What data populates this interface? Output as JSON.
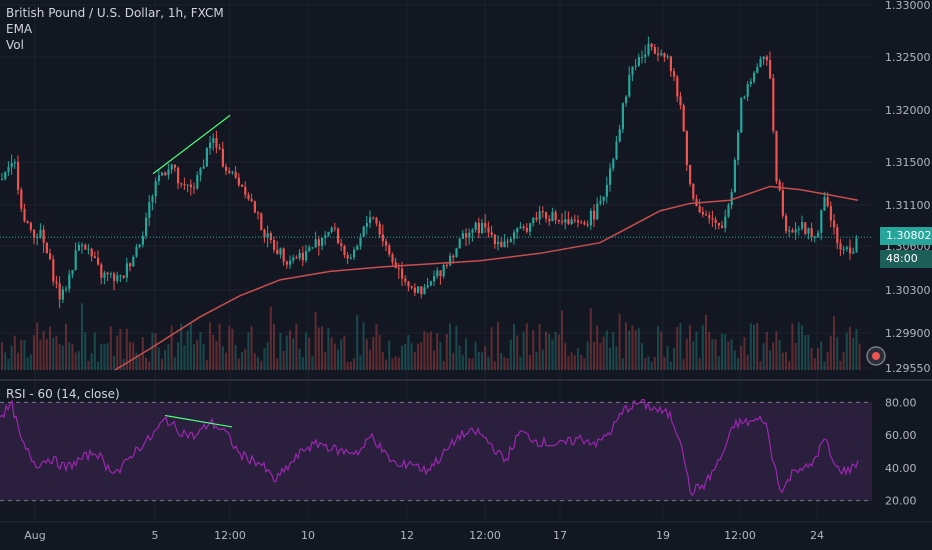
{
  "colors": {
    "background": "#131722",
    "grid": "#1e222d",
    "up": "#26a69a",
    "down": "#ef5350",
    "ema": "#c94e4e",
    "rsi_line": "#9c27b0",
    "rsi_band": "#2a1f3d",
    "last_price": "#26a69a",
    "text": "#b2b5be"
  },
  "legend": {
    "symbol": "British Pound / U.S. Dollar, 1h, FXCM",
    "ema": "EMA",
    "vol": "Vol",
    "rsi": "RSI - 60 (14, close)"
  },
  "last_price_tag": {
    "price": "1.30802",
    "countdown": "48:00"
  },
  "icons": {
    "settings": "clock-target-icon"
  },
  "chart_data": [
    {
      "type": "candlestick",
      "name": "British Pound / U.S. Dollar",
      "ylim": [
        1.2955,
        1.33
      ],
      "y_ticks": [
        "1.33000",
        "1.32500",
        "1.32000",
        "1.31500",
        "1.31100",
        "1.30600",
        "1.30300",
        "1.29900",
        "1.29550"
      ],
      "x_ticks": [
        "Aug",
        "5",
        "12:00",
        "10",
        "12",
        "12:00",
        "17",
        "19",
        "12:00",
        "24"
      ],
      "last_price": 1.30802,
      "path": [
        [
          0,
          1.3135
        ],
        [
          14,
          1.3148
        ],
        [
          24,
          1.309
        ],
        [
          40,
          1.3082
        ],
        [
          60,
          1.302
        ],
        [
          80,
          1.308
        ],
        [
          100,
          1.3045
        ],
        [
          120,
          1.304
        ],
        [
          140,
          1.308
        ],
        [
          155,
          1.3135
        ],
        [
          170,
          1.315
        ],
        [
          180,
          1.3125
        ],
        [
          195,
          1.313
        ],
        [
          210,
          1.3175
        ],
        [
          225,
          1.3145
        ],
        [
          245,
          1.3125
        ],
        [
          265,
          1.308
        ],
        [
          285,
          1.306
        ],
        [
          305,
          1.3065
        ],
        [
          330,
          1.309
        ],
        [
          350,
          1.3055
        ],
        [
          370,
          1.3105
        ],
        [
          390,
          1.306
        ],
        [
          405,
          1.304
        ],
        [
          420,
          1.3025
        ],
        [
          440,
          1.305
        ],
        [
          465,
          1.3085
        ],
        [
          480,
          1.309
        ],
        [
          500,
          1.3075
        ],
        [
          520,
          1.3085
        ],
        [
          540,
          1.3105
        ],
        [
          560,
          1.3095
        ],
        [
          580,
          1.309
        ],
        [
          600,
          1.311
        ],
        [
          615,
          1.317
        ],
        [
          630,
          1.324
        ],
        [
          650,
          1.326
        ],
        [
          665,
          1.3255
        ],
        [
          680,
          1.32
        ],
        [
          690,
          1.312
        ],
        [
          705,
          1.31
        ],
        [
          720,
          1.3085
        ],
        [
          730,
          1.312
        ],
        [
          740,
          1.321
        ],
        [
          755,
          1.324
        ],
        [
          768,
          1.325
        ],
        [
          775,
          1.314
        ],
        [
          785,
          1.309
        ],
        [
          800,
          1.309
        ],
        [
          815,
          1.308
        ],
        [
          825,
          1.312
        ],
        [
          835,
          1.3075
        ],
        [
          848,
          1.3065
        ],
        [
          858,
          1.308
        ]
      ],
      "ema": [
        [
          115,
          1.2955
        ],
        [
          150,
          1.2975
        ],
        [
          200,
          1.3005
        ],
        [
          240,
          1.3025
        ],
        [
          280,
          1.304
        ],
        [
          330,
          1.3048
        ],
        [
          380,
          1.3052
        ],
        [
          430,
          1.3055
        ],
        [
          480,
          1.3058
        ],
        [
          540,
          1.3065
        ],
        [
          600,
          1.3075
        ],
        [
          630,
          1.309
        ],
        [
          660,
          1.3105
        ],
        [
          690,
          1.3112
        ],
        [
          730,
          1.3115
        ],
        [
          770,
          1.3128
        ],
        [
          800,
          1.3125
        ],
        [
          830,
          1.312
        ],
        [
          858,
          1.3115
        ]
      ],
      "trendline": [
        [
          153,
          1.314
        ],
        [
          230,
          1.3195
        ]
      ]
    },
    {
      "type": "bar",
      "name": "Vol",
      "note": "volume bars overlaid at bottom of price pane"
    },
    {
      "type": "line",
      "name": "RSI",
      "ylim": [
        10,
        90
      ],
      "y_ticks": [
        "80.00",
        "60.00",
        "40.00",
        "20.00"
      ],
      "bands": [
        20,
        80
      ],
      "path": [
        [
          0,
          72
        ],
        [
          12,
          78
        ],
        [
          22,
          55
        ],
        [
          36,
          42
        ],
        [
          50,
          46
        ],
        [
          66,
          40
        ],
        [
          80,
          45
        ],
        [
          96,
          50
        ],
        [
          108,
          40
        ],
        [
          120,
          38
        ],
        [
          134,
          50
        ],
        [
          150,
          58
        ],
        [
          166,
          70
        ],
        [
          178,
          63
        ],
        [
          195,
          59
        ],
        [
          210,
          68
        ],
        [
          225,
          62
        ],
        [
          240,
          48
        ],
        [
          260,
          43
        ],
        [
          275,
          32
        ],
        [
          290,
          42
        ],
        [
          305,
          52
        ],
        [
          320,
          55
        ],
        [
          340,
          50
        ],
        [
          360,
          50
        ],
        [
          372,
          60
        ],
        [
          385,
          48
        ],
        [
          400,
          40
        ],
        [
          410,
          44
        ],
        [
          425,
          38
        ],
        [
          440,
          46
        ],
        [
          460,
          60
        ],
        [
          478,
          62
        ],
        [
          490,
          55
        ],
        [
          505,
          44
        ],
        [
          520,
          62
        ],
        [
          538,
          56
        ],
        [
          560,
          54
        ],
        [
          580,
          58
        ],
        [
          598,
          55
        ],
        [
          610,
          62
        ],
        [
          625,
          76
        ],
        [
          640,
          80
        ],
        [
          655,
          76
        ],
        [
          670,
          72
        ],
        [
          682,
          55
        ],
        [
          690,
          25
        ],
        [
          705,
          30
        ],
        [
          720,
          45
        ],
        [
          735,
          67
        ],
        [
          750,
          68
        ],
        [
          765,
          70
        ],
        [
          772,
          47
        ],
        [
          782,
          25
        ],
        [
          795,
          40
        ],
        [
          810,
          40
        ],
        [
          825,
          58
        ],
        [
          835,
          40
        ],
        [
          848,
          38
        ],
        [
          858,
          44
        ]
      ],
      "trendline": [
        [
          165,
          72
        ],
        [
          232,
          65
        ]
      ]
    }
  ]
}
